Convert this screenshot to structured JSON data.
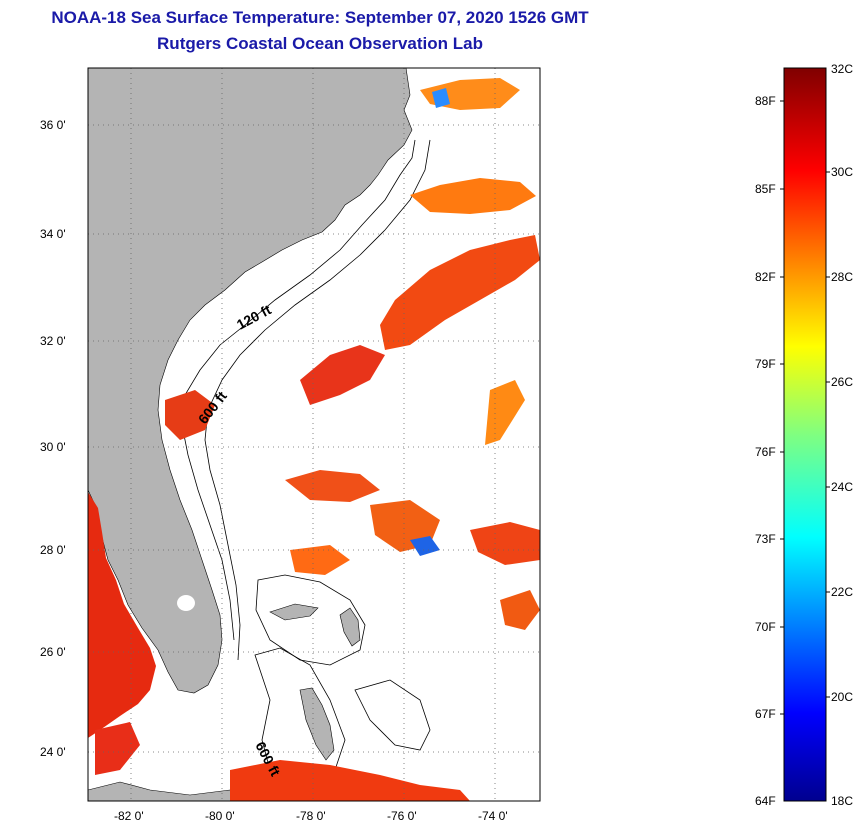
{
  "title": {
    "line1": "NOAA-18 Sea Surface Temperature:  September 07, 2020 1526 GMT",
    "line2": "Rutgers Coastal Ocean Observation Lab"
  },
  "map": {
    "lat_ticks": [
      "36 0'",
      "34 0'",
      "32 0'",
      "30 0'",
      "28 0'",
      "26 0'",
      "24 0'"
    ],
    "lon_ticks": [
      "-82 0'",
      "-80 0'",
      "-78 0'",
      "-76 0'",
      "-74 0'"
    ],
    "isobath_labels": [
      "120 ft",
      "600 ft",
      "600 ft"
    ],
    "colors": {
      "land": "#b4b4b4",
      "water_no_data": "#ffffff"
    }
  },
  "colorbar": {
    "fahrenheit": [
      "88F",
      "85F",
      "82F",
      "79F",
      "76F",
      "73F",
      "70F",
      "67F",
      "64F"
    ],
    "celsius": [
      "32C",
      "30C",
      "28C",
      "26C",
      "24C",
      "22C",
      "20C",
      "18C"
    ],
    "colormap": "jet",
    "range_c": [
      18,
      32
    ]
  }
}
